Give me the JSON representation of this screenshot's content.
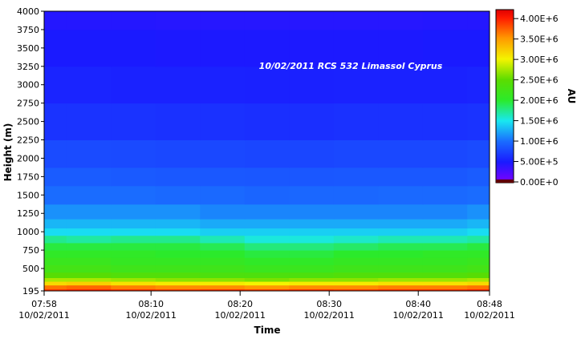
{
  "chart_data": {
    "type": "heatmap",
    "title": "10/02/2011 RCS 532 Limassol Cyprus",
    "x_label": "Time",
    "y_label": "Height (m)",
    "colorbar_label": "AU",
    "x_tick_date": "10/02/2011",
    "x": [
      "07:58",
      "08:03",
      "08:08",
      "08:13",
      "08:18",
      "08:23",
      "08:28",
      "08:33",
      "08:38",
      "08:43",
      "08:48"
    ],
    "y": [
      195,
      250,
      300,
      350,
      400,
      500,
      600,
      700,
      800,
      900,
      1000,
      1100,
      1250,
      1500,
      1750,
      2000,
      2500,
      3000,
      3500,
      4000
    ],
    "values": [
      [
        3900000,
        3950000,
        3900000,
        3850000,
        3900000,
        3850000,
        3900000,
        3850000,
        3900000,
        3900000,
        3950000
      ],
      [
        3650000,
        3700000,
        3600000,
        3550000,
        3550000,
        3500000,
        3550000,
        3550000,
        3600000,
        3600000,
        3650000
      ],
      [
        3150000,
        3200000,
        3100000,
        3050000,
        3050000,
        3000000,
        3050000,
        3050000,
        3100000,
        3100000,
        3150000
      ],
      [
        2750000,
        2750000,
        2700000,
        2650000,
        2650000,
        2600000,
        2650000,
        2650000,
        2700000,
        2700000,
        2750000
      ],
      [
        2450000,
        2450000,
        2400000,
        2400000,
        2350000,
        2350000,
        2350000,
        2400000,
        2400000,
        2400000,
        2450000
      ],
      [
        2250000,
        2250000,
        2200000,
        2200000,
        2200000,
        2150000,
        2150000,
        2200000,
        2200000,
        2200000,
        2250000
      ],
      [
        2150000,
        2150000,
        2100000,
        2100000,
        2100000,
        2050000,
        2050000,
        2100000,
        2100000,
        2100000,
        2150000
      ],
      [
        2050000,
        2050000,
        2050000,
        2000000,
        2000000,
        1950000,
        1950000,
        2000000,
        2000000,
        2050000,
        2050000
      ],
      [
        1950000,
        1950000,
        1950000,
        1950000,
        1900000,
        1800000,
        1800000,
        1850000,
        1900000,
        1900000,
        1950000
      ],
      [
        1750000,
        1700000,
        1750000,
        1750000,
        1650000,
        1550000,
        1550000,
        1600000,
        1650000,
        1650000,
        1700000
      ],
      [
        1450000,
        1450000,
        1450000,
        1450000,
        1400000,
        1400000,
        1400000,
        1400000,
        1400000,
        1400000,
        1450000
      ],
      [
        1300000,
        1300000,
        1300000,
        1300000,
        1250000,
        1250000,
        1250000,
        1250000,
        1250000,
        1250000,
        1300000
      ],
      [
        1150000,
        1150000,
        1150000,
        1150000,
        1100000,
        1100000,
        1100000,
        1100000,
        1100000,
        1100000,
        1150000
      ],
      [
        1000000,
        1000000,
        1000000,
        980000,
        980000,
        960000,
        970000,
        970000,
        980000,
        980000,
        1000000
      ],
      [
        900000,
        900000,
        890000,
        880000,
        880000,
        870000,
        870000,
        880000,
        880000,
        880000,
        900000
      ],
      [
        800000,
        800000,
        790000,
        780000,
        780000,
        770000,
        770000,
        780000,
        780000,
        780000,
        800000
      ],
      [
        650000,
        650000,
        650000,
        640000,
        640000,
        630000,
        630000,
        640000,
        640000,
        640000,
        650000
      ],
      [
        560000,
        560000,
        550000,
        550000,
        550000,
        540000,
        540000,
        550000,
        550000,
        550000,
        560000
      ],
      [
        500000,
        500000,
        500000,
        490000,
        490000,
        490000,
        490000,
        490000,
        490000,
        500000,
        500000
      ],
      [
        450000,
        450000,
        450000,
        440000,
        440000,
        440000,
        440000,
        440000,
        440000,
        450000,
        450000
      ]
    ],
    "xlim": [
      "07:58",
      "08:48"
    ],
    "xticks": [
      {
        "value": "07:58",
        "label": "07:58"
      },
      {
        "value": "08:10",
        "label": "08:10"
      },
      {
        "value": "08:20",
        "label": "08:20"
      },
      {
        "value": "08:30",
        "label": "08:30"
      },
      {
        "value": "08:40",
        "label": "08:40"
      },
      {
        "value": "08:48",
        "label": "08:48"
      }
    ],
    "ylim": [
      195,
      4000
    ],
    "yticks": [
      195,
      500,
      750,
      1000,
      1250,
      1500,
      1750,
      2000,
      2250,
      2500,
      2750,
      3000,
      3250,
      3500,
      3750,
      4000
    ],
    "clim": [
      0,
      4200000
    ],
    "cticks": [
      {
        "value": 0,
        "label": "0.00E+0"
      },
      {
        "value": 500000,
        "label": "5.00E+5"
      },
      {
        "value": 1000000,
        "label": "1.00E+6"
      },
      {
        "value": 1500000,
        "label": "1.50E+6"
      },
      {
        "value": 2000000,
        "label": "2.00E+6"
      },
      {
        "value": 2500000,
        "label": "2.50E+6"
      },
      {
        "value": 3000000,
        "label": "3.00E+6"
      },
      {
        "value": 3500000,
        "label": "3.50E+6"
      },
      {
        "value": 4000000,
        "label": "4.00E+6"
      }
    ],
    "colorscale": [
      {
        "value": 0,
        "color": "#8000ff"
      },
      {
        "value": 500000,
        "color": "#1a1aff"
      },
      {
        "value": 1000000,
        "color": "#1a6cff"
      },
      {
        "value": 1500000,
        "color": "#19e8f0"
      },
      {
        "value": 2000000,
        "color": "#2bea2b"
      },
      {
        "value": 2500000,
        "color": "#5cdc00"
      },
      {
        "value": 3000000,
        "color": "#f4f400"
      },
      {
        "value": 3500000,
        "color": "#ff9a00"
      },
      {
        "value": 4000000,
        "color": "#ff1a00"
      },
      {
        "value": 4200000,
        "color": "#e00000"
      }
    ]
  }
}
